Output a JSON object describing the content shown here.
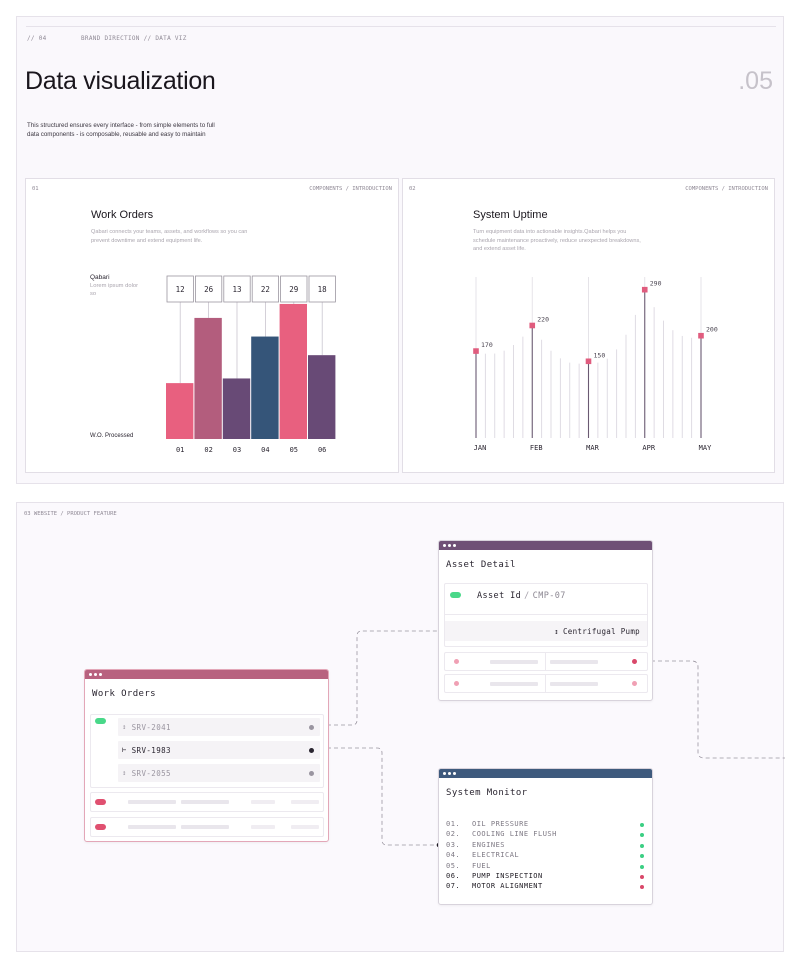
{
  "slide_top": {
    "meta_num": "// 04",
    "meta_category": "BRAND DIRECTION // DATA VIZ",
    "title": "Data visualization",
    "page_number": ".05",
    "intro": "This structured ensures every interface - from simple elements to full data components - is composable, reusable and easy to maintain"
  },
  "card_work_orders": {
    "index": "01",
    "crumb": "COMPONENTS / INTRODUCTION",
    "title": "Work Orders",
    "description": "Qabari connects your teams, assets, and workflows so you can prevent downtime and extend equipment life.",
    "series_label": "Qabari",
    "series_sub": "Lorem ipsum dolor so",
    "y_caption": "W.O. Processed"
  },
  "card_uptime": {
    "index": "02",
    "crumb": "COMPONENTS / INTRODUCTION",
    "title": "System Uptime",
    "description": "Turn equipment data into actionable insights.Qabari helps you schedule maintenance proactively, reduce unexpected breakdowns, and extend asset life."
  },
  "chart_data": [
    {
      "type": "bar",
      "title": "Work Orders",
      "categories": [
        "01",
        "02",
        "03",
        "04",
        "05",
        "06"
      ],
      "values": [
        12,
        26,
        13,
        22,
        29,
        18
      ],
      "colors": [
        "#e8607f",
        "#b35d7d",
        "#684a76",
        "#355579",
        "#e8607f",
        "#684a76"
      ],
      "ylabel": "W.O. Processed",
      "ylim": [
        0,
        35
      ]
    },
    {
      "type": "line",
      "title": "System Uptime",
      "categories": [
        "JAN",
        "FEB",
        "MAR",
        "APR",
        "MAY"
      ],
      "values": [
        170,
        220,
        150,
        290,
        200
      ],
      "labels": [
        "170",
        "220",
        "150",
        "290",
        "200"
      ],
      "ylim": [
        0,
        350
      ],
      "accent": "#e05c7e"
    }
  ],
  "slide_bottom": {
    "crumb": "03   WEBSITE / PRODUCT FEATURE"
  },
  "work_orders_window": {
    "title": "Work Orders",
    "rows": [
      {
        "code": "SRV-2041",
        "active": false
      },
      {
        "code": "SRV-1983",
        "active": true
      },
      {
        "code": "SRV-2055",
        "active": false
      }
    ],
    "bar_color": "#b8627f"
  },
  "asset_window": {
    "title": "Asset Detail",
    "id_label": "Asset Id",
    "separator": "/",
    "id_value": "CMP-07",
    "pump": "Centrifugal Pump",
    "bar_color": "#6f5076"
  },
  "system_window": {
    "title": "System Monitor",
    "bar_color": "#3e5a7d",
    "items": [
      {
        "n": "01.",
        "label": "OIL PRESSURE",
        "status": "ok"
      },
      {
        "n": "02.",
        "label": "COOLING LINE FLUSH",
        "status": "ok"
      },
      {
        "n": "03.",
        "label": "ENGINES",
        "status": "ok"
      },
      {
        "n": "04.",
        "label": "ELECTRICAL",
        "status": "ok"
      },
      {
        "n": "05.",
        "label": "FUEL",
        "status": "ok"
      },
      {
        "n": "06.",
        "label": "PUMP INSPECTION",
        "status": "warn"
      },
      {
        "n": "07.",
        "label": "MOTOR ALIGNMENT",
        "status": "warn"
      }
    ],
    "ok_color": "#3ccf83",
    "warn_color": "#d9486a"
  },
  "icons": {
    "sort": "↕",
    "tree": "⊢",
    "window_dots": "window-dots-icon"
  }
}
